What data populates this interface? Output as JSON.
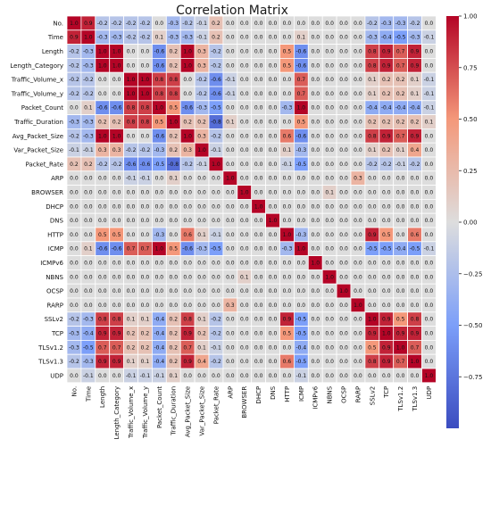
{
  "chart_data": {
    "type": "heatmap",
    "title": "Correlation Matrix",
    "xlabel": "",
    "ylabel": "",
    "labels": [
      "No.",
      "Time",
      "Length",
      "Length_Category",
      "Traffic_Volume_x",
      "Traffic_Volume_y",
      "Packet_Count",
      "Traffic_Duration",
      "Avg_Packet_Size",
      "Var_Packet_Size",
      "Packet_Rate",
      "ARP",
      "BROWSER",
      "DHCP",
      "DNS",
      "HTTP",
      "ICMP",
      "ICMPv6",
      "NBNS",
      "OCSP",
      "RARP",
      "SSLv2",
      "TCP",
      "TLSv1.2",
      "TLSv1.3",
      "UDP"
    ],
    "values": [
      [
        1.0,
        0.9,
        -0.2,
        -0.2,
        -0.2,
        -0.2,
        -0.0,
        -0.3,
        -0.2,
        -0.1,
        0.2,
        -0.0,
        -0.0,
        -0.0,
        -0.0,
        -0.0,
        -0.0,
        -0.0,
        -0.0,
        -0.0,
        -0.0,
        -0.2,
        -0.3,
        -0.3,
        -0.2,
        -0.0
      ],
      [
        0.9,
        1.0,
        -0.3,
        -0.3,
        -0.2,
        -0.2,
        0.1,
        -0.3,
        -0.3,
        -0.1,
        0.2,
        -0.0,
        -0.0,
        -0.0,
        -0.0,
        -0.0,
        0.1,
        -0.0,
        -0.0,
        -0.0,
        -0.0,
        -0.3,
        -0.4,
        -0.5,
        -0.3,
        -0.1
      ],
      [
        -0.2,
        -0.3,
        1.0,
        1.0,
        0.0,
        0.0,
        -0.6,
        0.2,
        1.0,
        0.3,
        -0.2,
        -0.0,
        -0.0,
        -0.0,
        -0.0,
        0.5,
        -0.6,
        -0.0,
        -0.0,
        -0.0,
        -0.0,
        0.8,
        0.9,
        0.7,
        0.9,
        -0.0
      ],
      [
        -0.2,
        -0.3,
        1.0,
        1.0,
        0.0,
        0.0,
        -0.6,
        0.2,
        1.0,
        0.3,
        -0.2,
        -0.0,
        -0.0,
        -0.0,
        -0.0,
        0.5,
        -0.6,
        -0.0,
        -0.0,
        -0.0,
        -0.0,
        0.8,
        0.9,
        0.7,
        0.9,
        -0.0
      ],
      [
        -0.2,
        -0.2,
        0.0,
        0.0,
        1.0,
        1.0,
        0.8,
        0.8,
        0.0,
        -0.2,
        -0.6,
        -0.1,
        -0.0,
        -0.0,
        -0.0,
        -0.0,
        0.7,
        -0.0,
        -0.0,
        -0.0,
        -0.0,
        0.1,
        0.2,
        0.2,
        0.1,
        -0.1
      ],
      [
        -0.2,
        -0.2,
        0.0,
        0.0,
        1.0,
        1.0,
        0.8,
        0.8,
        0.0,
        -0.2,
        -0.6,
        -0.1,
        -0.0,
        -0.0,
        -0.0,
        -0.0,
        0.7,
        -0.0,
        -0.0,
        -0.0,
        -0.0,
        0.1,
        0.2,
        0.2,
        0.1,
        -0.1
      ],
      [
        -0.0,
        0.1,
        -0.6,
        -0.6,
        0.8,
        0.8,
        1.0,
        0.5,
        -0.6,
        -0.3,
        -0.5,
        -0.0,
        -0.0,
        -0.0,
        -0.0,
        -0.3,
        1.0,
        -0.0,
        -0.0,
        -0.0,
        -0.0,
        -0.4,
        -0.4,
        -0.4,
        -0.4,
        -0.1
      ],
      [
        -0.3,
        -0.3,
        0.2,
        0.2,
        0.8,
        0.8,
        0.5,
        1.0,
        0.2,
        0.2,
        -0.8,
        0.1,
        0.0,
        0.0,
        0.0,
        0.0,
        0.5,
        0.0,
        0.0,
        0.0,
        0.0,
        0.2,
        0.2,
        0.2,
        0.2,
        0.1
      ],
      [
        -0.2,
        -0.3,
        1.0,
        1.0,
        0.0,
        0.0,
        -0.6,
        0.2,
        1.0,
        0.3,
        -0.2,
        -0.0,
        -0.0,
        -0.0,
        -0.0,
        0.6,
        -0.6,
        -0.0,
        -0.0,
        -0.0,
        -0.0,
        0.8,
        0.9,
        0.7,
        0.9,
        -0.0
      ],
      [
        -0.1,
        -0.1,
        0.3,
        0.3,
        -0.2,
        -0.2,
        -0.3,
        0.2,
        0.3,
        1.0,
        -0.1,
        -0.0,
        -0.0,
        -0.0,
        -0.0,
        0.1,
        -0.3,
        -0.0,
        -0.0,
        -0.0,
        -0.0,
        0.1,
        0.2,
        0.1,
        0.4,
        -0.0
      ],
      [
        0.2,
        0.2,
        -0.2,
        -0.2,
        -0.6,
        -0.6,
        -0.5,
        -0.8,
        -0.2,
        -0.1,
        1.0,
        -0.0,
        -0.0,
        -0.0,
        -0.0,
        -0.1,
        -0.5,
        -0.0,
        -0.0,
        -0.0,
        -0.0,
        -0.2,
        -0.2,
        -0.1,
        -0.2,
        -0.0
      ],
      [
        -0.0,
        -0.0,
        -0.0,
        -0.0,
        -0.1,
        -0.1,
        -0.0,
        0.1,
        -0.0,
        -0.0,
        -0.0,
        1.0,
        -0.0,
        -0.0,
        -0.0,
        -0.0,
        -0.0,
        -0.0,
        -0.0,
        -0.0,
        0.3,
        -0.0,
        -0.0,
        -0.0,
        -0.0,
        -0.0
      ],
      [
        -0.0,
        -0.0,
        -0.0,
        -0.0,
        -0.0,
        -0.0,
        -0.0,
        0.0,
        -0.0,
        -0.0,
        -0.0,
        -0.0,
        1.0,
        -0.0,
        -0.0,
        -0.0,
        -0.0,
        -0.0,
        0.1,
        -0.0,
        -0.0,
        -0.0,
        -0.0,
        -0.0,
        -0.0,
        -0.0
      ],
      [
        -0.0,
        -0.0,
        -0.0,
        -0.0,
        -0.0,
        -0.0,
        -0.0,
        0.0,
        -0.0,
        -0.0,
        -0.0,
        -0.0,
        -0.0,
        1.0,
        -0.0,
        -0.0,
        -0.0,
        -0.0,
        -0.0,
        -0.0,
        -0.0,
        -0.0,
        -0.0,
        -0.0,
        -0.0,
        -0.0
      ],
      [
        -0.0,
        -0.0,
        -0.0,
        -0.0,
        -0.0,
        -0.0,
        -0.0,
        0.0,
        -0.0,
        -0.0,
        -0.0,
        -0.0,
        -0.0,
        -0.0,
        1.0,
        -0.0,
        -0.0,
        -0.0,
        -0.0,
        -0.0,
        -0.0,
        -0.0,
        -0.0,
        -0.0,
        -0.0,
        -0.0
      ],
      [
        -0.0,
        -0.0,
        0.5,
        0.5,
        -0.0,
        -0.0,
        -0.3,
        0.0,
        0.6,
        0.1,
        -0.1,
        -0.0,
        -0.0,
        -0.0,
        -0.0,
        1.0,
        -0.3,
        -0.0,
        -0.0,
        -0.0,
        -0.0,
        0.9,
        0.5,
        -0.0,
        0.6,
        -0.0
      ],
      [
        -0.0,
        0.1,
        -0.6,
        -0.6,
        0.7,
        0.7,
        1.0,
        0.5,
        -0.6,
        -0.3,
        -0.5,
        -0.0,
        -0.0,
        -0.0,
        -0.0,
        -0.3,
        1.0,
        -0.0,
        -0.0,
        -0.0,
        -0.0,
        -0.5,
        -0.5,
        -0.4,
        -0.5,
        -0.1
      ],
      [
        -0.0,
        -0.0,
        -0.0,
        -0.0,
        -0.0,
        -0.0,
        -0.0,
        0.0,
        -0.0,
        -0.0,
        -0.0,
        -0.0,
        -0.0,
        -0.0,
        -0.0,
        -0.0,
        -0.0,
        1.0,
        -0.0,
        -0.0,
        -0.0,
        -0.0,
        -0.0,
        -0.0,
        -0.0,
        -0.0
      ],
      [
        -0.0,
        -0.0,
        -0.0,
        -0.0,
        -0.0,
        -0.0,
        -0.0,
        0.0,
        -0.0,
        -0.0,
        -0.0,
        -0.0,
        0.1,
        -0.0,
        -0.0,
        -0.0,
        -0.0,
        -0.0,
        1.0,
        -0.0,
        -0.0,
        -0.0,
        -0.0,
        -0.0,
        -0.0,
        -0.0
      ],
      [
        -0.0,
        -0.0,
        -0.0,
        -0.0,
        -0.0,
        -0.0,
        -0.0,
        0.0,
        -0.0,
        -0.0,
        -0.0,
        -0.0,
        -0.0,
        -0.0,
        -0.0,
        -0.0,
        -0.0,
        -0.0,
        -0.0,
        1.0,
        -0.0,
        -0.0,
        -0.0,
        -0.0,
        -0.0,
        -0.0
      ],
      [
        -0.0,
        -0.0,
        -0.0,
        -0.0,
        -0.0,
        -0.0,
        -0.0,
        0.0,
        -0.0,
        -0.0,
        -0.0,
        0.3,
        -0.0,
        -0.0,
        -0.0,
        -0.0,
        -0.0,
        -0.0,
        -0.0,
        -0.0,
        1.0,
        -0.0,
        -0.0,
        -0.0,
        -0.0,
        -0.0
      ],
      [
        -0.2,
        -0.3,
        0.8,
        0.8,
        0.1,
        0.1,
        -0.4,
        0.2,
        0.8,
        0.1,
        -0.2,
        -0.0,
        -0.0,
        -0.0,
        -0.0,
        0.9,
        -0.5,
        -0.0,
        -0.0,
        -0.0,
        -0.0,
        1.0,
        0.9,
        0.5,
        0.8,
        -0.0
      ],
      [
        -0.3,
        -0.4,
        0.9,
        0.9,
        0.2,
        0.2,
        -0.4,
        0.2,
        0.9,
        0.2,
        -0.2,
        -0.0,
        -0.0,
        -0.0,
        -0.0,
        0.5,
        -0.5,
        -0.0,
        -0.0,
        -0.0,
        -0.0,
        0.9,
        1.0,
        0.9,
        0.9,
        -0.0
      ],
      [
        -0.3,
        -0.5,
        0.7,
        0.7,
        0.2,
        0.2,
        -0.4,
        0.2,
        0.7,
        0.1,
        -0.1,
        -0.0,
        -0.0,
        -0.0,
        -0.0,
        -0.0,
        -0.4,
        -0.0,
        -0.0,
        -0.0,
        -0.0,
        0.5,
        0.9,
        1.0,
        0.7,
        -0.0
      ],
      [
        -0.2,
        -0.3,
        0.9,
        0.9,
        0.1,
        0.1,
        -0.4,
        0.2,
        0.9,
        0.4,
        -0.2,
        -0.0,
        -0.0,
        -0.0,
        -0.0,
        0.6,
        -0.5,
        -0.0,
        -0.0,
        -0.0,
        -0.0,
        0.8,
        0.9,
        0.7,
        1.0,
        -0.0
      ],
      [
        -0.0,
        -0.1,
        -0.0,
        -0.0,
        -0.1,
        -0.1,
        -0.1,
        0.1,
        -0.0,
        -0.0,
        -0.0,
        -0.0,
        -0.0,
        -0.0,
        -0.0,
        -0.0,
        -0.1,
        -0.0,
        -0.0,
        -0.0,
        -0.0,
        -0.0,
        -0.0,
        -0.0,
        -0.0,
        1.0
      ]
    ],
    "vmin": -1.0,
    "vmax": 1.0,
    "colorbar_ticks": [
      "1.00",
      "0.75",
      "0.50",
      "0.25",
      "0.00",
      "−0.25",
      "−0.50",
      "−0.75"
    ],
    "colorbar_tick_values": [
      1.0,
      0.75,
      0.5,
      0.25,
      0.0,
      -0.25,
      -0.5,
      -0.75
    ],
    "colormap": "coolwarm",
    "colors": {
      "low": "#3b4cc0",
      "mid": "#dddddd",
      "high": "#b40426",
      "cell_border": "#ffffff"
    }
  }
}
